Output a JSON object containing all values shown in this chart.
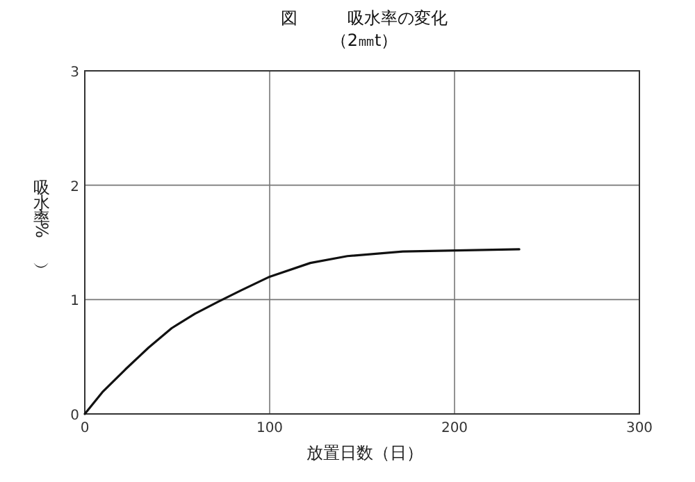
{
  "chart_data": {
    "type": "line",
    "title": "図　　　吸水率の変化",
    "subtitle": "（2㎜t）",
    "xlabel": "放置日数（日）",
    "ylabel": "吸水率（%）",
    "x": [
      0,
      9.5,
      22,
      34.5,
      47,
      59.5,
      72,
      84.5,
      100,
      122,
      142,
      172,
      201,
      235
    ],
    "series": [
      {
        "color": "#111111",
        "values": [
          0,
          0.19,
          0.39,
          0.58,
          0.75,
          0.875,
          0.98,
          1.08,
          1.2,
          1.32,
          1.38,
          1.42,
          1.43,
          1.44
        ]
      }
    ],
    "xlim": [
      0,
      300
    ],
    "ylim": [
      0,
      3
    ],
    "xticks": [
      0,
      100,
      200,
      300
    ],
    "yticks": [
      0,
      1,
      2,
      3
    ],
    "grid": true
  }
}
